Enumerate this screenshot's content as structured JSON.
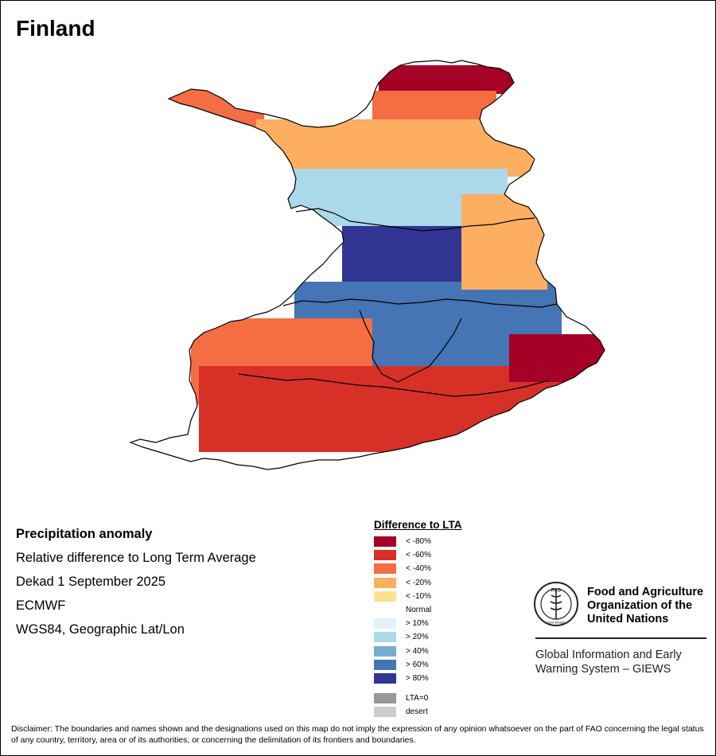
{
  "title": "Finland",
  "info": {
    "heading": "Precipitation anomaly",
    "line1": "Relative difference to Long Term Average",
    "line2": "Dekad 1 September 2025",
    "line3": "ECMWF",
    "line4": "WGS84, Geographic Lat/Lon"
  },
  "legend": {
    "title": "Difference to LTA",
    "classes": [
      {
        "label": "< -80%",
        "color": "#a50026"
      },
      {
        "label": "< -60%",
        "color": "#d73027"
      },
      {
        "label": "< -40%",
        "color": "#f46d43"
      },
      {
        "label": "< -20%",
        "color": "#fdae61"
      },
      {
        "label": "< -10%",
        "color": "#fee090"
      },
      {
        "label": "Normal",
        "color": "#ffffff"
      },
      {
        "label": "> 10%",
        "color": "#e0f3f8"
      },
      {
        "label": "> 20%",
        "color": "#abd9e9"
      },
      {
        "label": "> 40%",
        "color": "#74add1"
      },
      {
        "label": "> 60%",
        "color": "#4575b4"
      },
      {
        "label": "> 80%",
        "color": "#313695"
      }
    ],
    "extra": [
      {
        "label": "LTA=0",
        "color": "#999999"
      },
      {
        "label": "desert",
        "color": "#cccccc"
      }
    ]
  },
  "org": {
    "name_line1": "Food and Agriculture",
    "name_line2": "Organization of the",
    "name_line3": "United Nations",
    "logo_text": "FAO",
    "logo_motto": "FIAT PANIS",
    "giews_line1": "Global Information and Early",
    "giews_line2": "Warning System – GIEWS"
  },
  "disclaimer": "Disclaimer: The boundaries and names shown and the designations used on this map do not imply the expression of any opinion whatsoever on the part of FAO concerning the legal status of any country, territory, area or of its authorities, or concerning the delimitation of its frontiers and boundaries.",
  "map_regions": [
    {
      "name": "far-north-lapland",
      "anomaly_class": "< -80%",
      "color": "#a50026"
    },
    {
      "name": "northern-lapland",
      "anomaly_class": "< -40%",
      "color": "#f46d43"
    },
    {
      "name": "western-arm",
      "anomaly_class": "< -40%",
      "color": "#f46d43"
    },
    {
      "name": "central-lapland",
      "anomaly_class": "< -20%",
      "color": "#fdae61"
    },
    {
      "name": "northern-ostrobothnia",
      "anomaly_class": "> 20%",
      "color": "#abd9e9"
    },
    {
      "name": "kainuu",
      "anomaly_class": "> 80%",
      "color": "#313695"
    },
    {
      "name": "central-finland",
      "anomaly_class": "> 60%",
      "color": "#4575b4"
    },
    {
      "name": "eastern-finland",
      "anomaly_class": "< -20%",
      "color": "#fdae61"
    },
    {
      "name": "southwestern-finland",
      "anomaly_class": "< -40%",
      "color": "#f46d43"
    },
    {
      "name": "southern-coast",
      "anomaly_class": "< -60%",
      "color": "#d73027"
    },
    {
      "name": "southeast-corner",
      "anomaly_class": "< -80%",
      "color": "#a50026"
    }
  ]
}
